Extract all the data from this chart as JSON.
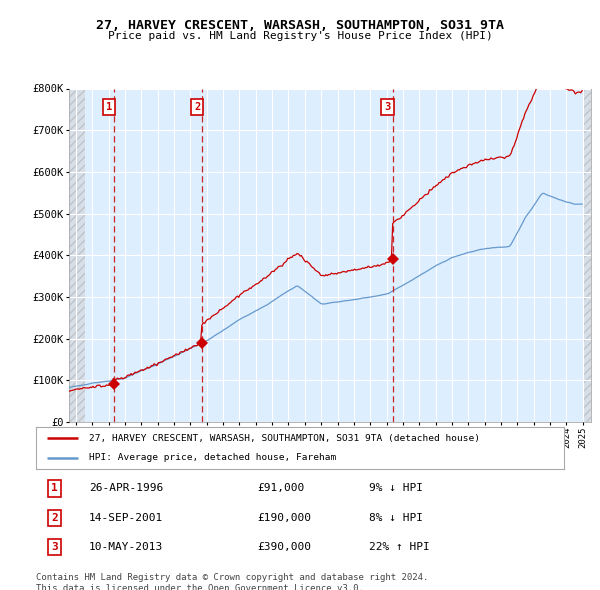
{
  "title1": "27, HARVEY CRESCENT, WARSASH, SOUTHAMPTON, SO31 9TA",
  "title2": "Price paid vs. HM Land Registry's House Price Index (HPI)",
  "legend_label1": "27, HARVEY CRESCENT, WARSASH, SOUTHAMPTON, SO31 9TA (detached house)",
  "legend_label2": "HPI: Average price, detached house, Fareham",
  "footer": "Contains HM Land Registry data © Crown copyright and database right 2024.\nThis data is licensed under the Open Government Licence v3.0.",
  "sale_years_float": [
    1996.32,
    2001.71,
    2013.37
  ],
  "sale_prices": [
    91000,
    190000,
    390000
  ],
  "color_red": "#cc0000",
  "color_blue": "#6699cc",
  "color_bg": "#ddeeff",
  "ylim": [
    0,
    800000
  ],
  "xlim_start": 1993.58,
  "xlim_end": 2025.5,
  "hatch_left_end": 1994.58,
  "hatch_right_start": 2025.0,
  "table_data": [
    [
      "1",
      "26-APR-1996",
      "£91,000",
      "9% ↓ HPI"
    ],
    [
      "2",
      "14-SEP-2001",
      "£190,000",
      "8% ↓ HPI"
    ],
    [
      "3",
      "10-MAY-2013",
      "£390,000",
      "22% ↑ HPI"
    ]
  ]
}
